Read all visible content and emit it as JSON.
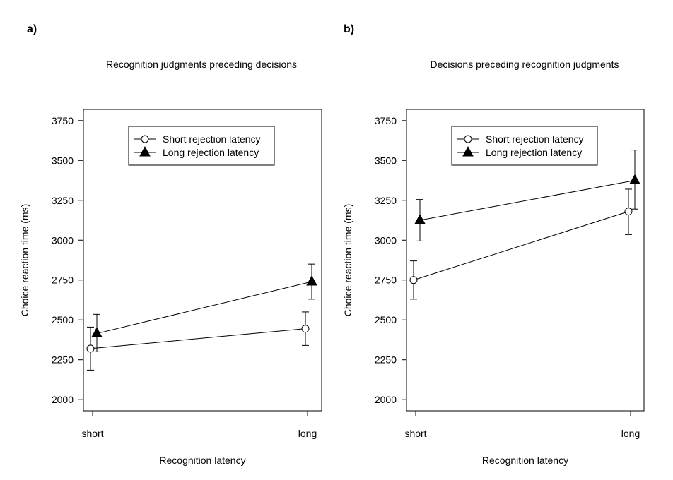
{
  "chart_data": [
    {
      "type": "line",
      "panel_label": "a)",
      "title": "Recognition judgments preceding decisions",
      "xlabel": "Recognition latency",
      "ylabel": "Choice reaction time (ms)",
      "categories": [
        "short",
        "long"
      ],
      "yticks": [
        2000,
        2250,
        2500,
        2750,
        3000,
        3250,
        3500,
        3750
      ],
      "ylim": [
        1930,
        3820
      ],
      "legend_position": "top-center",
      "series": [
        {
          "name": "Short rejection latency",
          "marker": "open-circle",
          "values": [
            2320,
            2445
          ],
          "error_low": [
            2185,
            2340
          ],
          "error_high": [
            2455,
            2550
          ]
        },
        {
          "name": "Long rejection latency",
          "marker": "filled-triangle",
          "values": [
            2415,
            2740
          ],
          "error_low": [
            2300,
            2630
          ],
          "error_high": [
            2535,
            2850
          ]
        }
      ]
    },
    {
      "type": "line",
      "panel_label": "b)",
      "title": "Decisions preceding recognition judgments",
      "xlabel": "Recognition latency",
      "ylabel": "Choice reaction time (ms)",
      "categories": [
        "short",
        "long"
      ],
      "yticks": [
        2000,
        2250,
        2500,
        2750,
        3000,
        3250,
        3500,
        3750
      ],
      "ylim": [
        1930,
        3820
      ],
      "legend_position": "top-center",
      "series": [
        {
          "name": "Short rejection latency",
          "marker": "open-circle",
          "values": [
            2750,
            3180
          ],
          "error_low": [
            2630,
            3035
          ],
          "error_high": [
            2870,
            3320
          ]
        },
        {
          "name": "Long rejection latency",
          "marker": "filled-triangle",
          "values": [
            3125,
            3375
          ],
          "error_low": [
            2995,
            3195
          ],
          "error_high": [
            3255,
            3565
          ]
        }
      ]
    }
  ]
}
